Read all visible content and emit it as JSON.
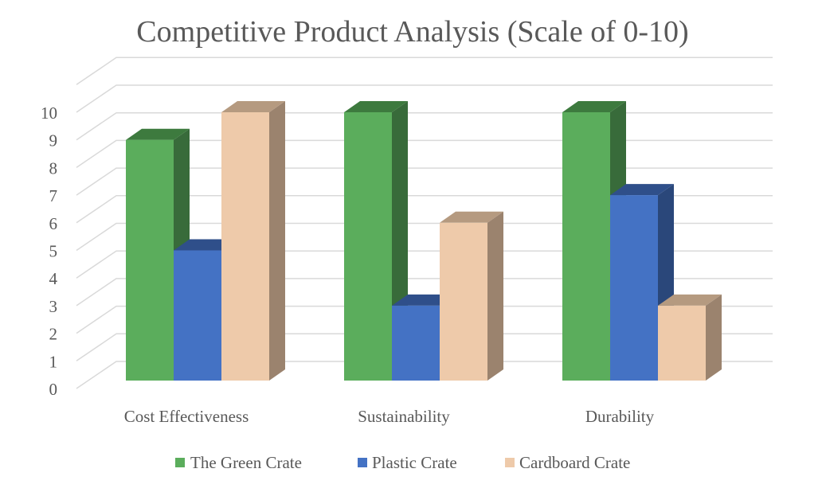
{
  "chart_data": {
    "type": "bar",
    "subtype": "3d-clustered-column",
    "title": "Competitive Product Analysis (Scale of 0-10)",
    "xlabel": "",
    "ylabel": "",
    "categories": [
      "Cost Effectiveness",
      "Sustainability",
      "Durability"
    ],
    "series": [
      {
        "name": "The Green Crate",
        "values": [
          9,
          10,
          10
        ],
        "color": "#5BAD5C",
        "side_color": "#386B3A",
        "top_color": "#3D7A3E"
      },
      {
        "name": "Plastic Crate",
        "values": [
          5,
          3,
          7
        ],
        "color": "#4472C4",
        "side_color": "#2A477A",
        "top_color": "#2F4F8A"
      },
      {
        "name": "Cardboard Crate",
        "values": [
          10,
          6,
          3
        ],
        "color": "#EECAAA",
        "side_color": "#9B836E",
        "top_color": "#B59A80"
      }
    ],
    "y_ticks": [
      "0",
      "1",
      "2",
      "3",
      "4",
      "5",
      "6",
      "7",
      "8",
      "9",
      "10"
    ],
    "ylim": [
      0,
      11
    ],
    "grid": true,
    "legend_position": "bottom",
    "colors": {
      "gridline": "#D9D9D9",
      "text": "#595959",
      "title": "#595959"
    }
  }
}
